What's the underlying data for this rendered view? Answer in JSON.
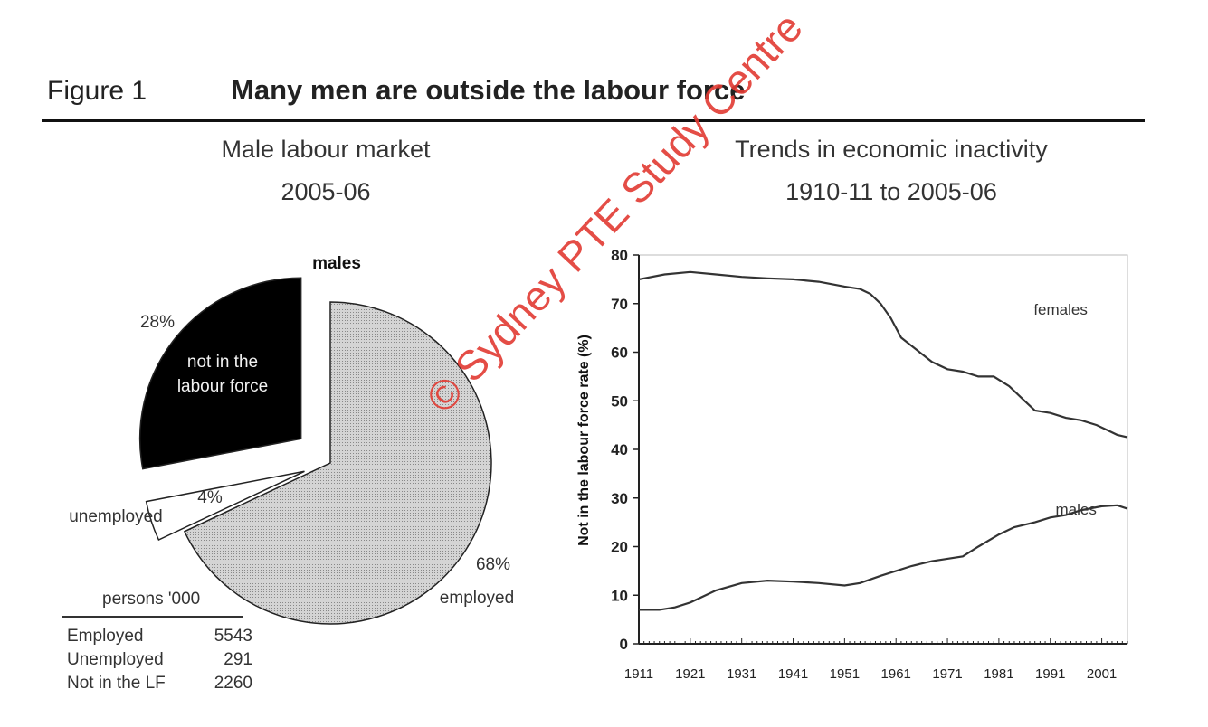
{
  "figure": {
    "label": "Figure 1",
    "title": "Many men are outside the labour force"
  },
  "watermark": "© Sydney PTE Study Centre",
  "chart_data": [
    {
      "type": "pie",
      "title": "Male labour market",
      "subtitle": "2005-06",
      "series_label": "males",
      "slices": [
        {
          "label": "employed",
          "percent": 68,
          "percent_label": "68%",
          "color": "#c9c9c9",
          "exploded": false
        },
        {
          "label": "unemployed",
          "percent": 4,
          "percent_label": "4%",
          "color": "#ffffff",
          "exploded": true
        },
        {
          "label": "not in the labour force",
          "percent": 28,
          "percent_label": "28%",
          "color": "#000000",
          "exploded": true
        }
      ],
      "table": {
        "header": "persons '000",
        "rows": [
          {
            "label": "Employed",
            "value": "5543"
          },
          {
            "label": "Unemployed",
            "value": "291"
          },
          {
            "label": "Not in the LF",
            "value": "2260"
          }
        ]
      }
    },
    {
      "type": "line",
      "title": "Trends in economic inactivity",
      "subtitle": "1910-11 to 2005-06",
      "xlabel": "",
      "ylabel": "Not in the labour force rate (%)",
      "xlim": [
        1911,
        2006
      ],
      "ylim": [
        0,
        80
      ],
      "yticks": [
        0,
        10,
        20,
        30,
        40,
        50,
        60,
        70,
        80
      ],
      "xticks": [
        1911,
        1921,
        1931,
        1941,
        1951,
        1961,
        1971,
        1981,
        1991,
        2001
      ],
      "grid": false,
      "series": [
        {
          "name": "females",
          "color": "#333333",
          "points": [
            [
              1911,
              75
            ],
            [
              1916,
              76
            ],
            [
              1921,
              76.5
            ],
            [
              1926,
              76
            ],
            [
              1931,
              75.5
            ],
            [
              1936,
              75.2
            ],
            [
              1941,
              75
            ],
            [
              1946,
              74.5
            ],
            [
              1951,
              73.5
            ],
            [
              1954,
              73
            ],
            [
              1956,
              72
            ],
            [
              1958,
              70
            ],
            [
              1960,
              67
            ],
            [
              1962,
              63
            ],
            [
              1965,
              60.5
            ],
            [
              1968,
              58
            ],
            [
              1971,
              56.5
            ],
            [
              1974,
              56
            ],
            [
              1977,
              55
            ],
            [
              1980,
              55
            ],
            [
              1983,
              53
            ],
            [
              1986,
              50
            ],
            [
              1988,
              48
            ],
            [
              1991,
              47.5
            ],
            [
              1994,
              46.5
            ],
            [
              1997,
              46
            ],
            [
              2000,
              45
            ],
            [
              2002,
              44
            ],
            [
              2004,
              43
            ],
            [
              2006,
              42.5
            ]
          ]
        },
        {
          "name": "males",
          "color": "#333333",
          "points": [
            [
              1911,
              7
            ],
            [
              1915,
              7
            ],
            [
              1918,
              7.5
            ],
            [
              1921,
              8.5
            ],
            [
              1926,
              11
            ],
            [
              1931,
              12.5
            ],
            [
              1936,
              13
            ],
            [
              1941,
              12.8
            ],
            [
              1946,
              12.5
            ],
            [
              1951,
              12
            ],
            [
              1954,
              12.5
            ],
            [
              1958,
              14
            ],
            [
              1961,
              15
            ],
            [
              1964,
              16
            ],
            [
              1968,
              17
            ],
            [
              1971,
              17.5
            ],
            [
              1974,
              18
            ],
            [
              1977,
              20
            ],
            [
              1981,
              22.5
            ],
            [
              1984,
              24
            ],
            [
              1988,
              25
            ],
            [
              1991,
              26
            ],
            [
              1994,
              26.5
            ],
            [
              1997,
              27.5
            ],
            [
              2001,
              28.3
            ],
            [
              2004,
              28.5
            ],
            [
              2006,
              27.8
            ]
          ]
        }
      ]
    }
  ]
}
